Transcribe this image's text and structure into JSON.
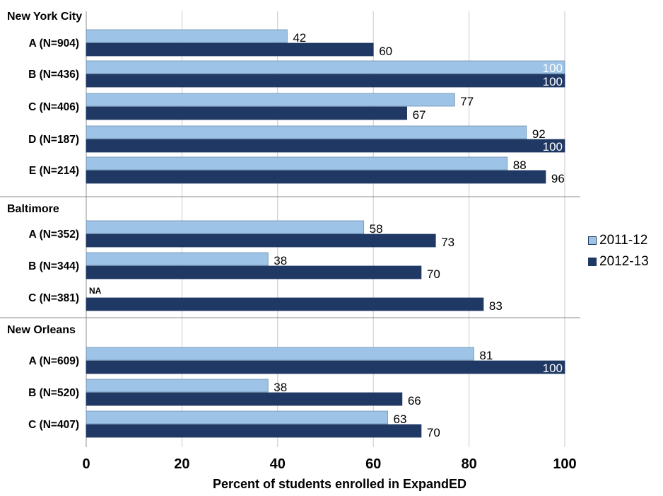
{
  "chart_data": {
    "type": "bar",
    "orientation": "horizontal",
    "xlabel": "Percent of students enrolled in ExpandED",
    "xlim": [
      0,
      100
    ],
    "xticks": [
      0,
      20,
      40,
      60,
      80,
      100
    ],
    "grid": "vertical",
    "legend_position": "right",
    "series": [
      {
        "name": "2011-12",
        "color": "#9dc3e6"
      },
      {
        "name": "2012-13",
        "color": "#1f3864"
      }
    ],
    "groups": [
      {
        "name": "New York City",
        "categories": [
          {
            "label": "A (N=904)",
            "values": [
              42,
              60
            ]
          },
          {
            "label": "B (N=436)",
            "values": [
              100,
              100
            ]
          },
          {
            "label": "C (N=406)",
            "values": [
              77,
              67
            ]
          },
          {
            "label": "D (N=187)",
            "values": [
              92,
              100
            ]
          },
          {
            "label": "E (N=214)",
            "values": [
              88,
              96
            ]
          }
        ]
      },
      {
        "name": "Baltimore",
        "categories": [
          {
            "label": "A (N=352)",
            "values": [
              58,
              73
            ]
          },
          {
            "label": "B (N=344)",
            "values": [
              38,
              70
            ]
          },
          {
            "label": "C (N=381)",
            "values": [
              null,
              83
            ],
            "na_label": "NA"
          }
        ]
      },
      {
        "name": "New Orleans",
        "categories": [
          {
            "label": "A (N=609)",
            "values": [
              81,
              100
            ]
          },
          {
            "label": "B (N=520)",
            "values": [
              38,
              66
            ]
          },
          {
            "label": "C (N=407)",
            "values": [
              63,
              70
            ]
          }
        ]
      }
    ]
  }
}
